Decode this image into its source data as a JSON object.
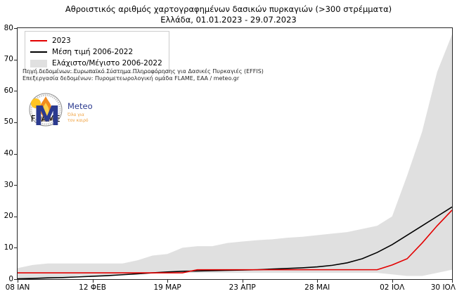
{
  "title": {
    "line1": "Αθροιστικός αριθμός χαρτογραφημένων δασικών πυρκαγιών (>300 στρέμματα)",
    "line2": "Ελλάδα, 01.01.2023 - 29.07.2023"
  },
  "legend": {
    "items": [
      {
        "label": "2023",
        "type": "line",
        "color": "#e30000"
      },
      {
        "label": "Μέση τιμή 2006-2022",
        "type": "line",
        "color": "#000000"
      },
      {
        "label": "Ελάχιστο/Μέγιστο 2006-2022",
        "type": "patch",
        "color": "#e0e0e0"
      }
    ]
  },
  "source": {
    "line1": "Πηγή δεδομένων: Ευρωπαϊκό Σύστημα Πληροφόρησης για Δασικές Πυρκαγιές (EFFIS)",
    "line2": "Επεξεργασία δεδομένων: Πυρομετεωρολογική ομάδα FLAME, ΕΑΑ / meteo.gr"
  },
  "logos": {
    "flame": {
      "label": "FLAME"
    },
    "meteo": {
      "name": "Meteo",
      "tagline_line1": "Όλα για",
      "tagline_line2": "τον καιρό"
    }
  },
  "colors": {
    "line_2023": "#e30000",
    "line_mean": "#000000",
    "band": "#e0e0e0",
    "spine": "#262626",
    "meteo_blue": "#2b3a8f",
    "meteo_yellow": "#ffc423",
    "meteo_orange": "#f0a03c",
    "flame_orange": "#f28c1e",
    "flame_yellow": "#ffd24a"
  },
  "chart_data": {
    "type": "line",
    "title": "Αθροιστικός αριθμός χαρτογραφημένων δασικών πυρκαγιών (>300 στρέμματα) — Ελλάδα, 01.01.2023 - 29.07.2023",
    "xlabel": "",
    "ylabel": "",
    "grid": false,
    "legend_position": "upper-left",
    "ylim": [
      0,
      80
    ],
    "y_ticks": [
      0,
      10,
      20,
      30,
      40,
      50,
      60,
      70,
      80
    ],
    "n_weeks": 30,
    "x_tick_labels": [
      "08 ΙΑΝ",
      "12 ΦΕΒ",
      "19 ΜΑΡ",
      "23 ΑΠΡ",
      "28 ΜΑΙ",
      "02 ΙΟΛ",
      "30 ΙΟΛ"
    ],
    "x_tick_weeks": [
      0,
      5,
      10,
      15,
      20,
      25,
      29
    ],
    "series": [
      {
        "name": "2023",
        "color": "#e30000",
        "values": [
          2,
          2,
          2,
          2,
          2,
          2,
          2,
          2,
          2,
          2,
          2,
          2,
          3,
          3,
          3,
          3,
          3,
          3,
          3,
          3,
          3,
          3,
          3,
          3,
          3,
          4.5,
          6.5,
          11.5,
          17,
          22
        ]
      },
      {
        "name": "Μέση τιμή 2006-2022",
        "color": "#000000",
        "values": [
          0.1,
          0.2,
          0.4,
          0.5,
          0.7,
          0.9,
          1.1,
          1.4,
          1.7,
          2.0,
          2.3,
          2.5,
          2.6,
          2.7,
          2.8,
          2.9,
          3.0,
          3.2,
          3.4,
          3.6,
          3.9,
          4.4,
          5.2,
          6.5,
          8.5,
          11,
          14,
          17,
          20,
          23
        ]
      }
    ],
    "band": {
      "name": "Ελάχιστο/Μέγιστο 2006-2022",
      "color": "#e0e0e0",
      "max": [
        3.5,
        4.5,
        5,
        5,
        5,
        5,
        5,
        5,
        6,
        7.5,
        8,
        10,
        10.5,
        10.5,
        11.5,
        12,
        12.4,
        12.7,
        13.2,
        13.5,
        14,
        14.5,
        15,
        16,
        17,
        20,
        33,
        47,
        66,
        78
      ],
      "min": [
        0,
        0,
        0,
        0.5,
        1,
        1,
        1,
        1.5,
        2,
        2,
        2,
        2,
        2,
        2,
        2,
        2,
        2,
        2,
        2,
        2,
        2,
        2,
        2,
        2,
        2,
        1.5,
        1,
        1,
        2,
        3
      ]
    }
  }
}
